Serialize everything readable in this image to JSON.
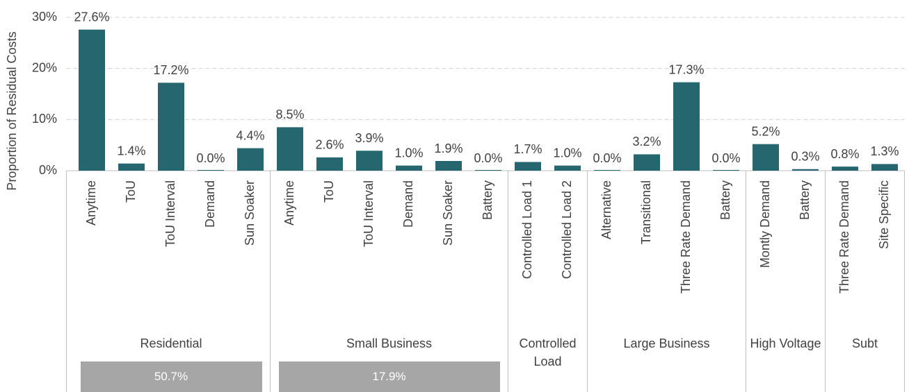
{
  "chart_data": {
    "type": "bar",
    "y_label": "Proportion of Residual Costs",
    "color": "#26666e",
    "grid": true,
    "ylim": [
      0,
      30
    ],
    "yticks": [
      {
        "value": 0,
        "label": "0%"
      },
      {
        "value": 10,
        "label": "10%"
      },
      {
        "value": 20,
        "label": "20%"
      },
      {
        "value": 30,
        "label": "30%"
      }
    ],
    "groups": [
      {
        "name": "Residential",
        "categories": [
          "Anytime",
          "ToU",
          "ToU Interval",
          "Demand",
          "Sun Soaker"
        ],
        "values": [
          27.6,
          1.4,
          17.2,
          0.0,
          4.4
        ],
        "value_labels": [
          "27.6%",
          "1.4%",
          "17.2%",
          "0.0%",
          "4.4%"
        ],
        "total": {
          "value": 50.7,
          "label": "50.7%"
        }
      },
      {
        "name": "Small Business",
        "categories": [
          "Anytime",
          "ToU",
          "ToU Interval",
          "Demand",
          "Sun Soaker",
          "Battery"
        ],
        "values": [
          8.5,
          2.6,
          3.9,
          1.0,
          1.9,
          0.0
        ],
        "value_labels": [
          "8.5%",
          "2.6%",
          "3.9%",
          "1.0%",
          "1.9%",
          "0.0%"
        ],
        "total": {
          "value": 17.9,
          "label": "17.9%"
        }
      },
      {
        "name": "Controlled Load",
        "categories": [
          "Controlled Load 1",
          "Controlled Load 2"
        ],
        "values": [
          1.7,
          1.0
        ],
        "value_labels": [
          "1.7%",
          "1.0%"
        ]
      },
      {
        "name": "Large Business",
        "categories": [
          "Alternative",
          "Transitional",
          "Three Rate Demand",
          "Battery"
        ],
        "values": [
          0.0,
          3.2,
          17.3,
          0.0
        ],
        "value_labels": [
          "0.0%",
          "3.2%",
          "17.3%",
          "0.0%"
        ]
      },
      {
        "name": "High Voltage",
        "categories": [
          "Montly Demand",
          "Battery"
        ],
        "values": [
          5.2,
          0.3
        ],
        "value_labels": [
          "5.2%",
          "0.3%"
        ]
      },
      {
        "name": "Subt",
        "categories": [
          "Three Rate Demand",
          "Site Specific"
        ],
        "values": [
          0.8,
          1.3
        ],
        "value_labels": [
          "0.8%",
          "1.3%"
        ]
      }
    ]
  }
}
